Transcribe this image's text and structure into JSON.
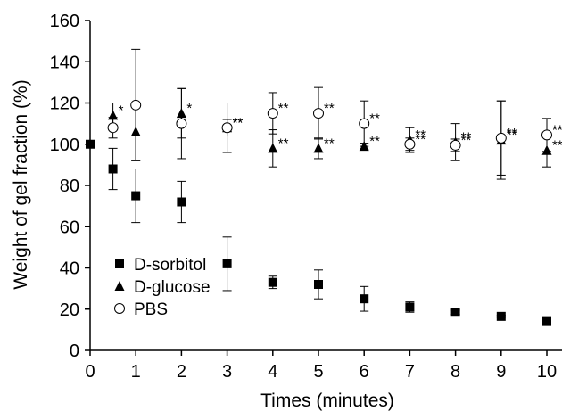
{
  "chart_data": {
    "type": "scatter",
    "xlabel": "Times (minutes)",
    "ylabel": "Weight of gel fraction (%)",
    "xlim": [
      0,
      10
    ],
    "ylim": [
      0,
      160
    ],
    "xticks": [
      "0",
      "1",
      "2",
      "3",
      "4",
      "5",
      "6",
      "7",
      "8",
      "9",
      "10"
    ],
    "yticks": [
      "0",
      "20",
      "40",
      "60",
      "80",
      "100",
      "120",
      "140",
      "160"
    ],
    "grid": false,
    "legend_position": "lower-left",
    "series": [
      {
        "name": "D-sorbitol",
        "marker": "square-filled",
        "points": [
          {
            "x": 0,
            "y": 100,
            "err": 0
          },
          {
            "x": 0.5,
            "y": 88,
            "err": 10
          },
          {
            "x": 1,
            "y": 75,
            "err": 13
          },
          {
            "x": 2,
            "y": 72,
            "err": 10
          },
          {
            "x": 3,
            "y": 42,
            "err": 13
          },
          {
            "x": 4,
            "y": 33,
            "err": 3
          },
          {
            "x": 5,
            "y": 32,
            "err": 7
          },
          {
            "x": 6,
            "y": 25,
            "err": 6
          },
          {
            "x": 7,
            "y": 21,
            "err": 2.5
          },
          {
            "x": 8,
            "y": 18.5,
            "err": 1
          },
          {
            "x": 9,
            "y": 16.5,
            "err": 0.5
          },
          {
            "x": 10,
            "y": 14,
            "err": 0.5
          }
        ]
      },
      {
        "name": "D-glucose",
        "marker": "triangle-filled",
        "points": [
          {
            "x": 0.5,
            "y": 114,
            "err": 6,
            "sig": "*"
          },
          {
            "x": 1,
            "y": 106,
            "err": 14
          },
          {
            "x": 2,
            "y": 115,
            "err": 12,
            "sig": "*"
          },
          {
            "x": 3,
            "y": 108,
            "err": 4,
            "sig": "**"
          },
          {
            "x": 4,
            "y": 98,
            "err": 9,
            "sig": "**"
          },
          {
            "x": 5,
            "y": 98,
            "err": 5,
            "sig": "**"
          },
          {
            "x": 6,
            "y": 99,
            "err": 1.5,
            "sig": "**"
          },
          {
            "x": 7,
            "y": 102,
            "err": 6,
            "sig": "**"
          },
          {
            "x": 8,
            "y": 101,
            "err": 9,
            "sig": "**"
          },
          {
            "x": 9,
            "y": 102,
            "err": 19,
            "sig": "**"
          },
          {
            "x": 10,
            "y": 97,
            "err": 8,
            "sig": "**"
          }
        ]
      },
      {
        "name": "PBS",
        "marker": "circle-open",
        "points": [
          {
            "x": 0.5,
            "y": 108,
            "err": 5
          },
          {
            "x": 1,
            "y": 119,
            "err": 27
          },
          {
            "x": 2,
            "y": 110,
            "err": 17
          },
          {
            "x": 3,
            "y": 108,
            "err": 12,
            "sig": "**"
          },
          {
            "x": 4,
            "y": 115,
            "err": 10,
            "sig": "**"
          },
          {
            "x": 5,
            "y": 115,
            "err": 12.5,
            "sig": "**"
          },
          {
            "x": 6,
            "y": 110,
            "err": 11,
            "sig": "**"
          },
          {
            "x": 7,
            "y": 100,
            "err": 3,
            "sig": "**"
          },
          {
            "x": 8,
            "y": 99.5,
            "err": 3,
            "sig": "**"
          },
          {
            "x": 9,
            "y": 103,
            "err": 18,
            "sig": "**"
          },
          {
            "x": 10,
            "y": 104.5,
            "err": 8,
            "sig": "**"
          }
        ]
      }
    ]
  }
}
